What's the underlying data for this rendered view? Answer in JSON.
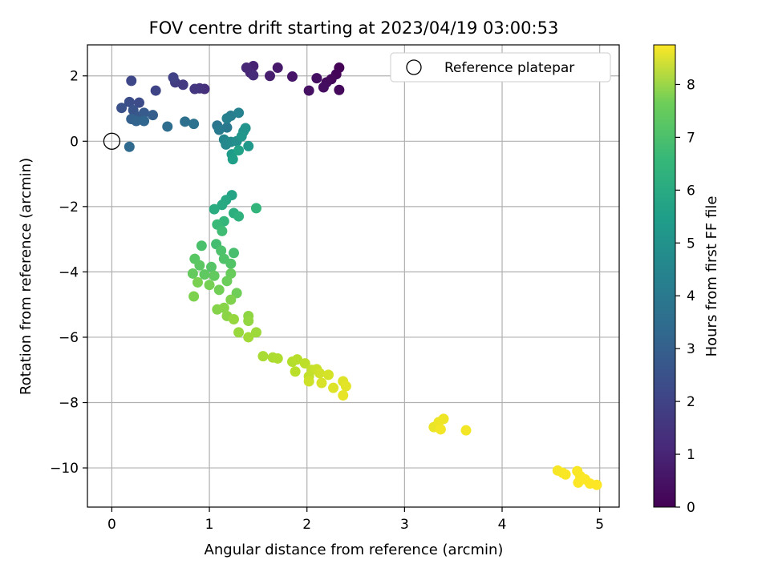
{
  "chart_data": {
    "type": "scatter",
    "title": "FOV centre drift starting at 2023/04/19 03:00:53",
    "xlabel": "Angular distance from reference (arcmin)",
    "ylabel": "Rotation from reference (arcmin)",
    "xlim": [
      -0.25,
      5.2
    ],
    "ylim": [
      -11.2,
      2.95
    ],
    "xticks": [
      "0",
      "1",
      "2",
      "3",
      "4",
      "5"
    ],
    "yticks": [
      "2",
      "0",
      "−2",
      "−4",
      "−6",
      "−8",
      "−10"
    ],
    "grid": true,
    "legend": {
      "position": "top-right",
      "entries": [
        "Reference platepar"
      ]
    },
    "reference_point": {
      "x": 0,
      "y": 0
    },
    "colorbar": {
      "label": "Hours from first FF file",
      "colormap": "viridis",
      "range": [
        0,
        8.75
      ],
      "ticks": [
        "0",
        "1",
        "2",
        "3",
        "4",
        "5",
        "6",
        "7",
        "8"
      ]
    },
    "points": [
      [
        2.33,
        2.25,
        0.05
      ],
      [
        2.3,
        2.05,
        0.1
      ],
      [
        2.25,
        1.9,
        0.15
      ],
      [
        2.33,
        1.57,
        0.2
      ],
      [
        2.2,
        1.8,
        0.25
      ],
      [
        2.17,
        1.65,
        0.3
      ],
      [
        2.1,
        1.93,
        0.35
      ],
      [
        2.02,
        1.55,
        0.4
      ],
      [
        1.85,
        1.98,
        0.5
      ],
      [
        1.7,
        2.25,
        0.6
      ],
      [
        1.62,
        2.0,
        0.7
      ],
      [
        1.45,
        2.3,
        0.8
      ],
      [
        1.42,
        2.1,
        0.9
      ],
      [
        1.38,
        2.25,
        1.0
      ],
      [
        1.45,
        2.02,
        1.1
      ],
      [
        0.95,
        1.6,
        1.2
      ],
      [
        0.9,
        1.62,
        1.3
      ],
      [
        0.85,
        1.6,
        1.4
      ],
      [
        0.73,
        1.73,
        1.5
      ],
      [
        0.65,
        1.8,
        1.6
      ],
      [
        0.63,
        1.95,
        1.7
      ],
      [
        0.45,
        1.55,
        1.8
      ],
      [
        0.2,
        1.85,
        1.9
      ],
      [
        0.28,
        1.18,
        2.0
      ],
      [
        0.18,
        1.2,
        2.1
      ],
      [
        0.1,
        1.02,
        2.2
      ],
      [
        0.22,
        0.95,
        2.3
      ],
      [
        0.27,
        0.75,
        2.4
      ],
      [
        0.33,
        0.87,
        2.5
      ],
      [
        0.42,
        0.8,
        2.6
      ],
      [
        0.2,
        0.68,
        2.7
      ],
      [
        0.25,
        0.62,
        2.8
      ],
      [
        0.33,
        0.62,
        2.9
      ],
      [
        0.18,
        -0.17,
        3.0
      ],
      [
        0.57,
        0.45,
        3.1
      ],
      [
        0.75,
        0.6,
        3.2
      ],
      [
        0.84,
        0.53,
        3.3
      ],
      [
        1.08,
        0.48,
        3.4
      ],
      [
        1.18,
        0.42,
        3.5
      ],
      [
        1.1,
        0.35,
        3.6
      ],
      [
        1.22,
        0.78,
        3.7
      ],
      [
        1.18,
        0.7,
        3.8
      ],
      [
        1.3,
        0.87,
        3.9
      ],
      [
        1.15,
        0.05,
        4.0
      ],
      [
        1.17,
        -0.1,
        4.1
      ],
      [
        1.22,
        -0.02,
        4.2
      ],
      [
        1.28,
        0.0,
        4.3
      ],
      [
        1.35,
        0.3,
        4.4
      ],
      [
        1.37,
        0.4,
        4.5
      ],
      [
        1.33,
        0.15,
        4.6
      ],
      [
        1.4,
        -0.15,
        4.7
      ],
      [
        1.23,
        -0.4,
        4.8
      ],
      [
        1.24,
        -0.55,
        4.9
      ],
      [
        1.3,
        -0.28,
        5.0
      ],
      [
        1.23,
        -1.65,
        5.1
      ],
      [
        1.17,
        -1.8,
        5.2
      ],
      [
        1.13,
        -1.95,
        5.3
      ],
      [
        1.05,
        -2.08,
        5.4
      ],
      [
        1.25,
        -2.2,
        5.5
      ],
      [
        1.3,
        -2.3,
        5.6
      ],
      [
        1.48,
        -2.05,
        5.7
      ],
      [
        1.15,
        -2.45,
        5.8
      ],
      [
        1.08,
        -2.55,
        5.9
      ],
      [
        1.13,
        -2.75,
        6.0
      ],
      [
        1.07,
        -3.15,
        6.1
      ],
      [
        1.25,
        -3.42,
        6.15
      ],
      [
        0.92,
        -3.2,
        6.2
      ],
      [
        1.12,
        -3.35,
        6.25
      ],
      [
        1.15,
        -3.6,
        6.3
      ],
      [
        1.22,
        -3.75,
        6.35
      ],
      [
        1.02,
        -3.85,
        6.4
      ],
      [
        0.85,
        -3.6,
        6.45
      ],
      [
        0.9,
        -3.8,
        6.5
      ],
      [
        0.95,
        -4.08,
        6.55
      ],
      [
        1.05,
        -4.12,
        6.6
      ],
      [
        0.83,
        -4.05,
        6.65
      ],
      [
        1.22,
        -4.05,
        6.7
      ],
      [
        1.18,
        -4.28,
        6.75
      ],
      [
        1.28,
        -4.65,
        6.8
      ],
      [
        1.1,
        -4.55,
        6.85
      ],
      [
        1.0,
        -4.4,
        6.9
      ],
      [
        0.88,
        -4.32,
        6.95
      ],
      [
        0.84,
        -4.75,
        7.0
      ],
      [
        1.22,
        -4.85,
        7.05
      ],
      [
        1.08,
        -5.15,
        7.1
      ],
      [
        1.15,
        -5.1,
        7.15
      ],
      [
        1.18,
        -5.35,
        7.2
      ],
      [
        1.4,
        -5.35,
        7.25
      ],
      [
        1.4,
        -5.5,
        7.3
      ],
      [
        1.25,
        -5.45,
        7.35
      ],
      [
        1.3,
        -5.85,
        7.4
      ],
      [
        1.48,
        -5.85,
        7.45
      ],
      [
        1.4,
        -6.0,
        7.5
      ],
      [
        1.55,
        -6.58,
        7.6
      ],
      [
        1.65,
        -6.62,
        7.65
      ],
      [
        1.7,
        -6.65,
        7.7
      ],
      [
        1.85,
        -6.75,
        7.75
      ],
      [
        1.9,
        -6.68,
        7.8
      ],
      [
        1.88,
        -7.05,
        7.85
      ],
      [
        1.98,
        -6.8,
        7.9
      ],
      [
        2.02,
        -7.2,
        7.95
      ],
      [
        2.05,
        -7.0,
        8.0
      ],
      [
        2.1,
        -6.98,
        8.05
      ],
      [
        2.02,
        -7.35,
        8.1
      ],
      [
        2.13,
        -7.1,
        8.15
      ],
      [
        2.22,
        -7.15,
        8.2
      ],
      [
        2.15,
        -7.4,
        8.25
      ],
      [
        2.27,
        -7.55,
        8.3
      ],
      [
        2.37,
        -7.35,
        8.35
      ],
      [
        2.4,
        -7.5,
        8.4
      ],
      [
        2.37,
        -7.78,
        8.45
      ],
      [
        3.3,
        -8.75,
        8.5
      ],
      [
        3.35,
        -8.6,
        8.55
      ],
      [
        3.4,
        -8.5,
        8.55
      ],
      [
        3.37,
        -8.82,
        8.6
      ],
      [
        3.63,
        -8.85,
        8.6
      ],
      [
        4.57,
        -10.08,
        8.65
      ],
      [
        4.62,
        -10.15,
        8.65
      ],
      [
        4.65,
        -10.2,
        8.7
      ],
      [
        4.77,
        -10.1,
        8.7
      ],
      [
        4.8,
        -10.25,
        8.7
      ],
      [
        4.78,
        -10.45,
        8.72
      ],
      [
        4.85,
        -10.35,
        8.72
      ],
      [
        4.9,
        -10.48,
        8.75
      ],
      [
        4.97,
        -10.52,
        8.75
      ]
    ]
  }
}
